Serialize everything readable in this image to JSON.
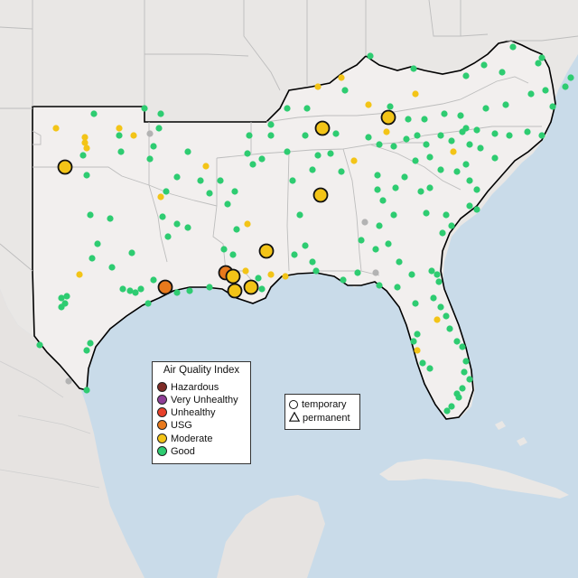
{
  "legend": {
    "title": "Air Quality Index",
    "items": [
      {
        "label": "Hazardous",
        "color": "#7e2b26"
      },
      {
        "label": "Very Unhealthy",
        "color": "#8f3f97"
      },
      {
        "label": "Unhealthy",
        "color": "#e8412b"
      },
      {
        "label": "USG",
        "color": "#e8791c"
      },
      {
        "label": "Moderate",
        "color": "#f3c417"
      },
      {
        "label": "Good",
        "color": "#2ecc71"
      }
    ]
  },
  "shape_legend": {
    "temporary": "temporary",
    "permanent": "permanent"
  },
  "colors": {
    "land_region": "#f2efee",
    "land_outside": "#e9e7e5",
    "water": "#c9dbe9",
    "unknown": "#b3b3b3"
  },
  "large_markers": [
    {
      "category": "Moderate"
    },
    {
      "category": "Moderate"
    },
    {
      "category": "Moderate"
    },
    {
      "category": "Moderate"
    },
    {
      "category": "Moderate"
    },
    {
      "category": "USG"
    },
    {
      "category": "USG"
    },
    {
      "category": "Moderate"
    },
    {
      "category": "Moderate"
    },
    {
      "category": "Moderate"
    }
  ]
}
